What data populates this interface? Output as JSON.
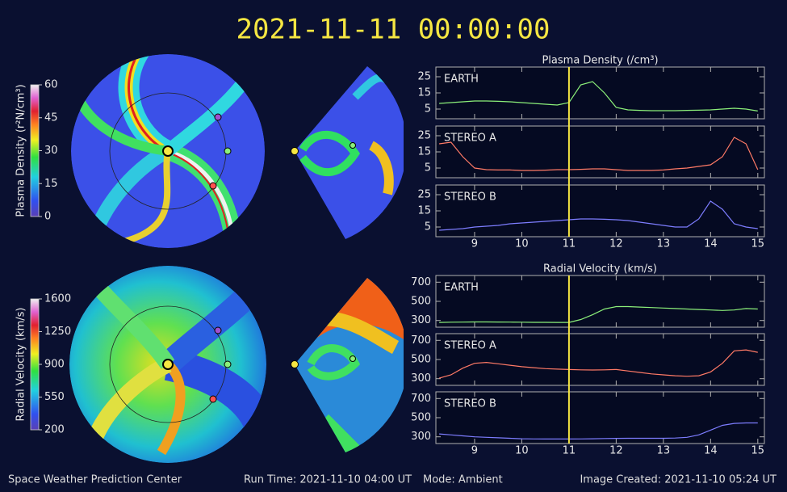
{
  "header": {
    "title": "2021-11-11 00:00:00"
  },
  "footer": {
    "left": "Space Weather Prediction Center",
    "run_time": "Run Time: 2021-11-10 04:00 UT",
    "mode": "Mode: Ambient",
    "created": "Image Created: 2021-11-10 05:24 UT"
  },
  "colorbars": [
    {
      "label": "Plasma Density (r²N/cm³)",
      "lim": [
        0,
        60
      ],
      "ticks": [
        0,
        15,
        30,
        45,
        60
      ]
    },
    {
      "label": "Radial Velocity (km/s)",
      "lim": [
        200,
        1600
      ],
      "ticks": [
        200,
        550,
        900,
        1250,
        1600
      ]
    }
  ],
  "marker_x": 11,
  "chart_data": [
    {
      "type": "line",
      "title": "Plasma Density (/cm³)",
      "xlim": [
        8.18,
        15.14
      ],
      "ylim": [
        -1,
        31
      ],
      "yticks": [
        5,
        15,
        25
      ],
      "x": [
        8.25,
        8.5,
        8.75,
        9,
        9.25,
        9.5,
        9.75,
        10,
        10.25,
        10.5,
        10.75,
        11,
        11.25,
        11.5,
        11.75,
        12,
        12.25,
        12.5,
        12.75,
        13,
        13.25,
        13.5,
        13.75,
        14,
        14.25,
        14.5,
        14.75,
        15
      ],
      "series": [
        {
          "name": "EARTH",
          "color": "#8cf07a",
          "values": [
            8.5,
            9,
            9.5,
            10,
            10,
            9.8,
            9.5,
            9,
            8.5,
            8,
            7.5,
            9,
            20,
            22,
            15,
            6,
            4.5,
            4.2,
            4,
            4,
            4,
            4.2,
            4.3,
            4.5,
            5,
            5.5,
            5,
            3.8
          ]
        }
      ]
    },
    {
      "type": "line",
      "xlim": [
        8.18,
        15.14
      ],
      "ylim": [
        -1,
        31
      ],
      "yticks": [
        5,
        15,
        25
      ],
      "x": [
        8.25,
        8.5,
        8.75,
        9,
        9.25,
        9.5,
        9.75,
        10,
        10.25,
        10.5,
        10.75,
        11,
        11.25,
        11.5,
        11.75,
        12,
        12.25,
        12.5,
        12.75,
        13,
        13.25,
        13.5,
        13.75,
        14,
        14.25,
        14.5,
        14.75,
        15
      ],
      "series": [
        {
          "name": "STEREO A",
          "color": "#ff7a66",
          "values": [
            20,
            21,
            12,
            5,
            4,
            3.8,
            3.8,
            3.5,
            3.5,
            3.7,
            4,
            4,
            4.2,
            4.5,
            4.5,
            4,
            3.5,
            3.5,
            3.5,
            3.8,
            4.5,
            5,
            6,
            7,
            12,
            24,
            20,
            4
          ]
        }
      ]
    },
    {
      "type": "line",
      "xlim": [
        8.18,
        15.14
      ],
      "ylim": [
        -1,
        31
      ],
      "yticks": [
        5,
        15,
        25
      ],
      "xticks": [
        9,
        10,
        11,
        12,
        13,
        14,
        15
      ],
      "x": [
        8.25,
        8.5,
        8.75,
        9,
        9.25,
        9.5,
        9.75,
        10,
        10.25,
        10.5,
        10.75,
        11,
        11.25,
        11.5,
        11.75,
        12,
        12.25,
        12.5,
        12.75,
        13,
        13.25,
        13.5,
        13.75,
        14,
        14.25,
        14.5,
        14.75,
        15
      ],
      "series": [
        {
          "name": "STEREO B",
          "color": "#7d7dff",
          "values": [
            3,
            3.5,
            4,
            5,
            5.5,
            6,
            7,
            7.5,
            8,
            8.5,
            9,
            9.5,
            10,
            10,
            9.8,
            9.5,
            9,
            8,
            7,
            6,
            5,
            5,
            10,
            21,
            16,
            7,
            5,
            4
          ]
        }
      ]
    },
    {
      "type": "line",
      "title": "Radial Velocity (km/s)",
      "xlim": [
        8.18,
        15.14
      ],
      "ylim": [
        230,
        770
      ],
      "yticks": [
        300,
        500,
        700
      ],
      "x": [
        8.25,
        8.5,
        8.75,
        9,
        9.25,
        9.5,
        9.75,
        10,
        10.25,
        10.5,
        10.75,
        11,
        11.25,
        11.5,
        11.75,
        12,
        12.25,
        12.5,
        12.75,
        13,
        13.25,
        13.5,
        13.75,
        14,
        14.25,
        14.5,
        14.75,
        15
      ],
      "series": [
        {
          "name": "EARTH",
          "color": "#8cf07a",
          "values": [
            280,
            282,
            283,
            285,
            285,
            284,
            283,
            282,
            281,
            281,
            280,
            280,
            310,
            360,
            420,
            445,
            445,
            440,
            435,
            430,
            425,
            420,
            415,
            410,
            405,
            410,
            425,
            420
          ]
        }
      ]
    },
    {
      "type": "line",
      "xlim": [
        8.18,
        15.14
      ],
      "ylim": [
        230,
        770
      ],
      "yticks": [
        300,
        500,
        700
      ],
      "x": [
        8.25,
        8.5,
        8.75,
        9,
        9.25,
        9.5,
        9.75,
        10,
        10.25,
        10.5,
        10.75,
        11,
        11.25,
        11.5,
        11.75,
        12,
        12.25,
        12.5,
        12.75,
        13,
        13.25,
        13.5,
        13.75,
        14,
        14.25,
        14.5,
        14.75,
        15
      ],
      "series": [
        {
          "name": "STEREO A",
          "color": "#ff7a66",
          "values": [
            305,
            340,
            410,
            460,
            470,
            455,
            440,
            425,
            415,
            405,
            400,
            395,
            392,
            390,
            392,
            395,
            380,
            365,
            350,
            340,
            330,
            325,
            330,
            370,
            460,
            590,
            600,
            575
          ]
        }
      ]
    },
    {
      "type": "line",
      "xlim": [
        8.18,
        15.14
      ],
      "ylim": [
        230,
        770
      ],
      "yticks": [
        300,
        500,
        700
      ],
      "xticks": [
        9,
        10,
        11,
        12,
        13,
        14,
        15
      ],
      "x": [
        8.25,
        8.5,
        8.75,
        9,
        9.25,
        9.5,
        9.75,
        10,
        10.25,
        10.5,
        10.75,
        11,
        11.25,
        11.5,
        11.75,
        12,
        12.25,
        12.5,
        12.75,
        13,
        13.25,
        13.5,
        13.75,
        14,
        14.25,
        14.5,
        14.75,
        15
      ],
      "series": [
        {
          "name": "STEREO B",
          "color": "#7d7dff",
          "values": [
            330,
            320,
            310,
            300,
            295,
            290,
            285,
            280,
            278,
            277,
            277,
            277,
            278,
            280,
            282,
            284,
            285,
            285,
            285,
            285,
            287,
            295,
            320,
            370,
            420,
            440,
            445,
            445
          ]
        }
      ]
    }
  ]
}
